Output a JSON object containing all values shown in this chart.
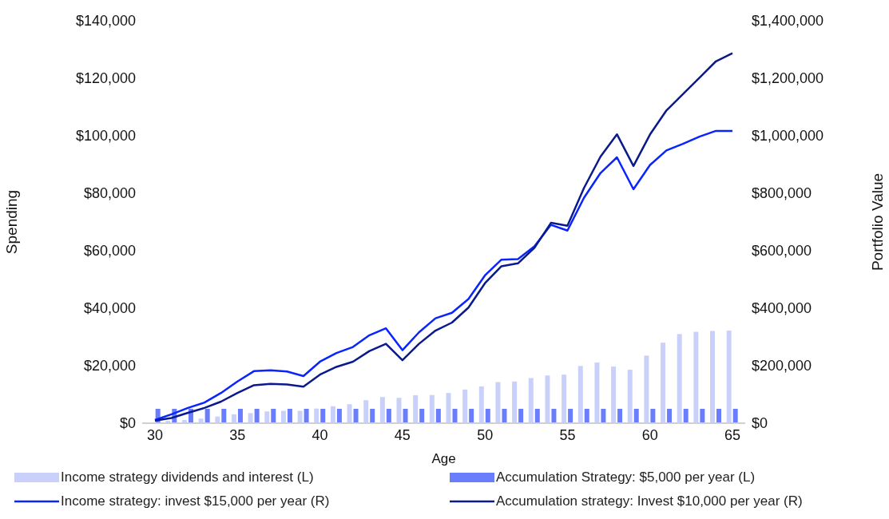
{
  "chart_data": {
    "type": "bar",
    "xlabel": "Age",
    "ylabel": "Spending",
    "y2label": "Portfolio Value",
    "x": [
      30,
      31,
      32,
      33,
      34,
      35,
      36,
      37,
      38,
      39,
      40,
      41,
      42,
      43,
      44,
      45,
      46,
      47,
      48,
      49,
      50,
      51,
      52,
      53,
      54,
      55,
      56,
      57,
      58,
      59,
      60,
      61,
      62,
      63,
      64,
      65
    ],
    "xlim": [
      30,
      65
    ],
    "xticks": [
      30,
      35,
      40,
      45,
      50,
      55,
      60,
      65
    ],
    "ylim": [
      0,
      140000
    ],
    "yticks": [
      {
        "value": 0,
        "label": "$0"
      },
      {
        "value": 20000,
        "label": "$20,000"
      },
      {
        "value": 40000,
        "label": "$40,000"
      },
      {
        "value": 60000,
        "label": "$60,000"
      },
      {
        "value": 80000,
        "label": "$80,000"
      },
      {
        "value": 100000,
        "label": "$100,000"
      },
      {
        "value": 120000,
        "label": "$120,000"
      },
      {
        "value": 140000,
        "label": "$140,000"
      }
    ],
    "y2lim": [
      0,
      1400000
    ],
    "y2ticks": [
      {
        "value": 0,
        "label": "$0"
      },
      {
        "value": 200000,
        "label": "$200,000"
      },
      {
        "value": 400000,
        "label": "$400,000"
      },
      {
        "value": 600000,
        "label": "$600,000"
      },
      {
        "value": 800000,
        "label": "$800,000"
      },
      {
        "value": 1000000,
        "label": "$1,000,000"
      },
      {
        "value": 1200000,
        "label": "$1,200,000"
      },
      {
        "value": 1400000,
        "label": "$1,400,000"
      }
    ],
    "grid": false,
    "legend": "bottom",
    "series": [
      {
        "name": "Income strategy dividends and interest (L)",
        "color": "#c9d1fb",
        "values": [
          null,
          800,
          1100,
          1600,
          2300,
          3100,
          3500,
          4100,
          4300,
          4300,
          5100,
          5900,
          6600,
          8000,
          9100,
          8800,
          9700,
          9800,
          10500,
          11700,
          12800,
          14300,
          14500,
          15700,
          16600,
          16900,
          19900,
          21100,
          19700,
          18600,
          23500,
          28000,
          31000,
          31800,
          32100,
          32200
        ]
      },
      {
        "name": "Accumulation Strategy: $5,000 per year (L)",
        "color": "#6a7dfc",
        "values": [
          5000,
          5000,
          5000,
          5000,
          5000,
          5000,
          5000,
          5000,
          5000,
          5000,
          5000,
          5000,
          5000,
          5000,
          5000,
          5000,
          5000,
          5000,
          5000,
          5000,
          5000,
          5000,
          5000,
          5000,
          5000,
          5000,
          5000,
          5000,
          5000,
          5000,
          5000,
          5000,
          5000,
          5000,
          5000,
          5000
        ]
      },
      {
        "name": "Income strategy: invest $15,000 per year (R)",
        "type": "line",
        "axis": "y2",
        "color": "#0a24ff",
        "values": [
          11000,
          31000,
          53000,
          72000,
          105000,
          145000,
          181000,
          184000,
          180000,
          164000,
          214000,
          244000,
          265000,
          306000,
          330000,
          254000,
          316000,
          365000,
          384000,
          432000,
          514000,
          569000,
          571000,
          615000,
          690000,
          670000,
          784000,
          870000,
          925000,
          814000,
          898000,
          949000,
          972000,
          997000,
          1017000,
          1017000
        ]
      },
      {
        "name": "Accumulation strategy: Invest $10,000 per year (R)",
        "type": "line",
        "axis": "y2",
        "color": "#0a1a8c",
        "values": [
          9000,
          18000,
          36000,
          53000,
          75000,
          105000,
          132000,
          137000,
          135000,
          127000,
          169000,
          196000,
          214000,
          251000,
          276000,
          219000,
          276000,
          322000,
          350000,
          402000,
          487000,
          546000,
          556000,
          610000,
          697000,
          687000,
          818000,
          927000,
          1005000,
          895000,
          1004000,
          1088000,
          1145000,
          1202000,
          1259000,
          1287000
        ]
      }
    ]
  }
}
